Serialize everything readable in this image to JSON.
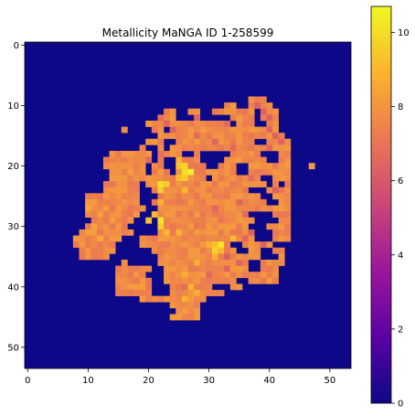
{
  "chart_data": {
    "type": "heatmap",
    "title": "Metallicity MaNGA ID 1-258599",
    "xlabel": "",
    "ylabel": "",
    "grid": false,
    "image_shape": [
      54,
      54
    ],
    "xlim": [
      -0.5,
      53.5
    ],
    "ylim": [
      53.5,
      -0.5
    ],
    "x_ticks": [
      0,
      10,
      20,
      30,
      40,
      50
    ],
    "y_ticks": [
      0,
      10,
      20,
      30,
      40,
      50
    ],
    "colormap": "plasma",
    "background_value": 0,
    "colorbar": {
      "range": [
        0,
        10.7
      ],
      "ticks": [
        0,
        2,
        4,
        6,
        8,
        10
      ],
      "colors": [
        "#0d0887",
        "#5b02a3",
        "#9a179b",
        "#cb4678",
        "#eb7852",
        "#fbb32f",
        "#eff821"
      ]
    },
    "data_region_note_values": {
      "typical": 7.8,
      "min_nonzero": 6.2,
      "max": 10.5
    },
    "row_spans": [
      [
        9,
        [
          [
            37,
            39
          ]
        ]
      ],
      [
        10,
        [
          [
            33,
            34
          ],
          [
            37,
            40
          ]
        ]
      ],
      [
        11,
        [
          [
            23,
            24
          ],
          [
            27,
            28
          ],
          [
            31,
            37
          ],
          [
            39,
            41
          ]
        ]
      ],
      [
        12,
        [
          [
            22,
            27
          ],
          [
            29,
            41
          ]
        ]
      ],
      [
        13,
        [
          [
            20,
            41
          ]
        ]
      ],
      [
        14,
        [
          [
            16,
            16
          ],
          [
            21,
            41
          ]
        ]
      ],
      [
        15,
        [
          [
            22,
            42
          ]
        ]
      ],
      [
        16,
        [
          [
            20,
            43
          ]
        ]
      ],
      [
        17,
        [
          [
            19,
            43
          ]
        ]
      ],
      [
        18,
        [
          [
            14,
            20
          ],
          [
            23,
            43
          ]
        ]
      ],
      [
        19,
        [
          [
            13,
            20
          ],
          [
            22,
            43
          ]
        ]
      ],
      [
        20,
        [
          [
            13,
            19
          ],
          [
            21,
            43
          ],
          [
            47,
            47
          ]
        ]
      ],
      [
        21,
        [
          [
            14,
            19
          ],
          [
            21,
            43
          ]
        ]
      ],
      [
        22,
        [
          [
            14,
            20
          ],
          [
            21,
            43
          ]
        ]
      ],
      [
        23,
        [
          [
            13,
            20
          ],
          [
            21,
            41
          ],
          [
            43,
            43
          ]
        ]
      ],
      [
        24,
        [
          [
            13,
            43
          ]
        ]
      ],
      [
        25,
        [
          [
            10,
            43
          ]
        ]
      ],
      [
        26,
        [
          [
            10,
            43
          ]
        ]
      ],
      [
        27,
        [
          [
            10,
            43
          ]
        ]
      ],
      [
        28,
        [
          [
            10,
            43
          ]
        ]
      ],
      [
        29,
        [
          [
            11,
            43
          ]
        ]
      ],
      [
        30,
        [
          [
            10,
            43
          ]
        ]
      ],
      [
        31,
        [
          [
            9,
            43
          ]
        ]
      ],
      [
        32,
        [
          [
            8,
            43
          ]
        ]
      ],
      [
        33,
        [
          [
            8,
            41
          ]
        ]
      ],
      [
        34,
        [
          [
            9,
            42
          ]
        ]
      ],
      [
        35,
        [
          [
            9,
            42
          ]
        ]
      ],
      [
        36,
        [
          [
            15,
            42
          ]
        ]
      ],
      [
        37,
        [
          [
            15,
            20
          ],
          [
            23,
            41
          ]
        ]
      ],
      [
        38,
        [
          [
            15,
            21
          ],
          [
            22,
            41
          ]
        ]
      ],
      [
        39,
        [
          [
            15,
            41
          ]
        ]
      ],
      [
        40,
        [
          [
            15,
            35
          ]
        ]
      ],
      [
        41,
        [
          [
            15,
            32
          ]
        ]
      ],
      [
        42,
        [
          [
            19,
            29
          ]
        ]
      ],
      [
        43,
        [
          [
            24,
            28
          ]
        ]
      ],
      [
        44,
        [
          [
            25,
            28
          ]
        ]
      ],
      [
        45,
        [
          [
            24,
            28
          ]
        ]
      ]
    ],
    "holes": [
      [
        12,
        [
          [
            25,
            27
          ],
          [
            29,
            33
          ],
          [
            38,
            38
          ]
        ]
      ],
      [
        13,
        [
          [
            34,
            34
          ],
          [
            38,
            39
          ]
        ]
      ],
      [
        14,
        [
          [
            23,
            23
          ]
        ]
      ],
      [
        16,
        [
          [
            23,
            24
          ],
          [
            38,
            39
          ]
        ]
      ],
      [
        17,
        [
          [
            20,
            21
          ],
          [
            23,
            23
          ]
        ]
      ],
      [
        18,
        [
          [
            26,
            27
          ],
          [
            29,
            33
          ],
          [
            39,
            41
          ]
        ]
      ],
      [
        19,
        [
          [
            23,
            25
          ],
          [
            29,
            32
          ],
          [
            40,
            41
          ]
        ]
      ],
      [
        20,
        [
          [
            23,
            24
          ],
          [
            30,
            31
          ],
          [
            35,
            36
          ]
        ]
      ],
      [
        21,
        [
          [
            24,
            24
          ],
          [
            35,
            36
          ]
        ]
      ],
      [
        22,
        [
          [
            30,
            30
          ],
          [
            39,
            40
          ]
        ]
      ],
      [
        23,
        [
          [
            19,
            19
          ],
          [
            40,
            40
          ]
        ]
      ],
      [
        24,
        [
          [
            19,
            20
          ],
          [
            37,
            39
          ]
        ]
      ],
      [
        25,
        [
          [
            19,
            21
          ],
          [
            39,
            40
          ]
        ]
      ],
      [
        26,
        [
          [
            19,
            20
          ],
          [
            40,
            41
          ]
        ]
      ],
      [
        27,
        [
          [
            20,
            21
          ]
        ]
      ],
      [
        28,
        [
          [
            19,
            20
          ],
          [
            37,
            40
          ]
        ]
      ],
      [
        29,
        [
          [
            18,
            21
          ],
          [
            38,
            41
          ]
        ]
      ],
      [
        30,
        [
          [
            17,
            22
          ],
          [
            37,
            39
          ]
        ]
      ],
      [
        31,
        [
          [
            18,
            21
          ],
          [
            38,
            40
          ]
        ]
      ],
      [
        32,
        [
          [
            16,
            18
          ],
          [
            38,
            40
          ]
        ]
      ],
      [
        33,
        [
          [
            15,
            18
          ],
          [
            34,
            35
          ],
          [
            41,
            41
          ]
        ]
      ],
      [
        34,
        [
          [
            15,
            20
          ],
          [
            35,
            36
          ],
          [
            39,
            40
          ]
        ]
      ],
      [
        35,
        [
          [
            14,
            21
          ],
          [
            39,
            41
          ]
        ]
      ],
      [
        36,
        [
          [
            14,
            21
          ],
          [
            37,
            38
          ]
        ]
      ],
      [
        37,
        [
          [
            21,
            22
          ],
          [
            37,
            38
          ]
        ]
      ],
      [
        38,
        [
          [
            20,
            22
          ]
        ]
      ],
      [
        39,
        [
          [
            21,
            22
          ],
          [
            35,
            36
          ]
        ]
      ],
      [
        40,
        [
          [
            21,
            23
          ],
          [
            31,
            33
          ]
        ]
      ],
      [
        41,
        [
          [
            21,
            23
          ]
        ]
      ]
    ],
    "accent_cells": [
      [
        12,
        22,
        6.8
      ],
      [
        12,
        28,
        6.5
      ],
      [
        13,
        23,
        6.5
      ],
      [
        13,
        33,
        6.6
      ],
      [
        14,
        24,
        6.4
      ],
      [
        15,
        28,
        6.7
      ],
      [
        16,
        31,
        6.5
      ],
      [
        17,
        34,
        6.6
      ],
      [
        18,
        22,
        6.8
      ],
      [
        19,
        20,
        6.7
      ],
      [
        19,
        25,
        8.9
      ],
      [
        20,
        25,
        9.4
      ],
      [
        20,
        26,
        9.8
      ],
      [
        21,
        26,
        10.0
      ],
      [
        21,
        27,
        10.5
      ],
      [
        22,
        25,
        9.2
      ],
      [
        22,
        26,
        9.6
      ],
      [
        23,
        22,
        10.0
      ],
      [
        23,
        23,
        9.5
      ],
      [
        24,
        22,
        9.6
      ],
      [
        24,
        26,
        9.0
      ],
      [
        26,
        22,
        8.9
      ],
      [
        28,
        21,
        9.0
      ],
      [
        29,
        20,
        9.2
      ],
      [
        29,
        22,
        10.2
      ],
      [
        30,
        22,
        9.6
      ],
      [
        31,
        23,
        9.0
      ],
      [
        31,
        25,
        8.8
      ],
      [
        32,
        34,
        9.0
      ],
      [
        33,
        30,
        8.8
      ],
      [
        33,
        31,
        9.2
      ],
      [
        33,
        32,
        10.3
      ],
      [
        34,
        31,
        9.7
      ],
      [
        34,
        32,
        9.0
      ],
      [
        35,
        31,
        8.9
      ],
      [
        36,
        28,
        8.8
      ],
      [
        38,
        26,
        8.7
      ],
      [
        40,
        27,
        8.9
      ],
      [
        41,
        28,
        8.8
      ],
      [
        42,
        26,
        8.9
      ],
      [
        16,
        42,
        6.4
      ],
      [
        17,
        40,
        6.5
      ],
      [
        22,
        37,
        6.6
      ],
      [
        24,
        41,
        6.4
      ],
      [
        26,
        35,
        6.5
      ],
      [
        27,
        31,
        6.5
      ],
      [
        28,
        36,
        6.6
      ],
      [
        31,
        37,
        6.3
      ],
      [
        32,
        36,
        6.5
      ],
      [
        33,
        39,
        6.3
      ],
      [
        35,
        33,
        6.2
      ],
      [
        36,
        35,
        6.4
      ],
      [
        37,
        33,
        6.5
      ],
      [
        38,
        30,
        6.6
      ],
      [
        40,
        26,
        6.7
      ],
      [
        10,
        38,
        6.3
      ],
      [
        11,
        39,
        6.4
      ],
      [
        12,
        40,
        6.3
      ],
      [
        14,
        40,
        6.5
      ],
      [
        15,
        41,
        6.3
      ],
      [
        26,
        11,
        8.2
      ],
      [
        27,
        10,
        8.5
      ],
      [
        28,
        12,
        8.3
      ],
      [
        30,
        11,
        8.4
      ],
      [
        31,
        10,
        8.3
      ],
      [
        33,
        9,
        8.1
      ],
      [
        34,
        10,
        8.0
      ],
      [
        32,
        12,
        8.6
      ],
      [
        29,
        14,
        8.2
      ],
      [
        25,
        13,
        8.1
      ],
      [
        21,
        15,
        7.9
      ],
      [
        20,
        14,
        8.0
      ],
      [
        36,
        16,
        7.9
      ],
      [
        38,
        18,
        8.0
      ],
      [
        40,
        19,
        8.2
      ]
    ]
  }
}
